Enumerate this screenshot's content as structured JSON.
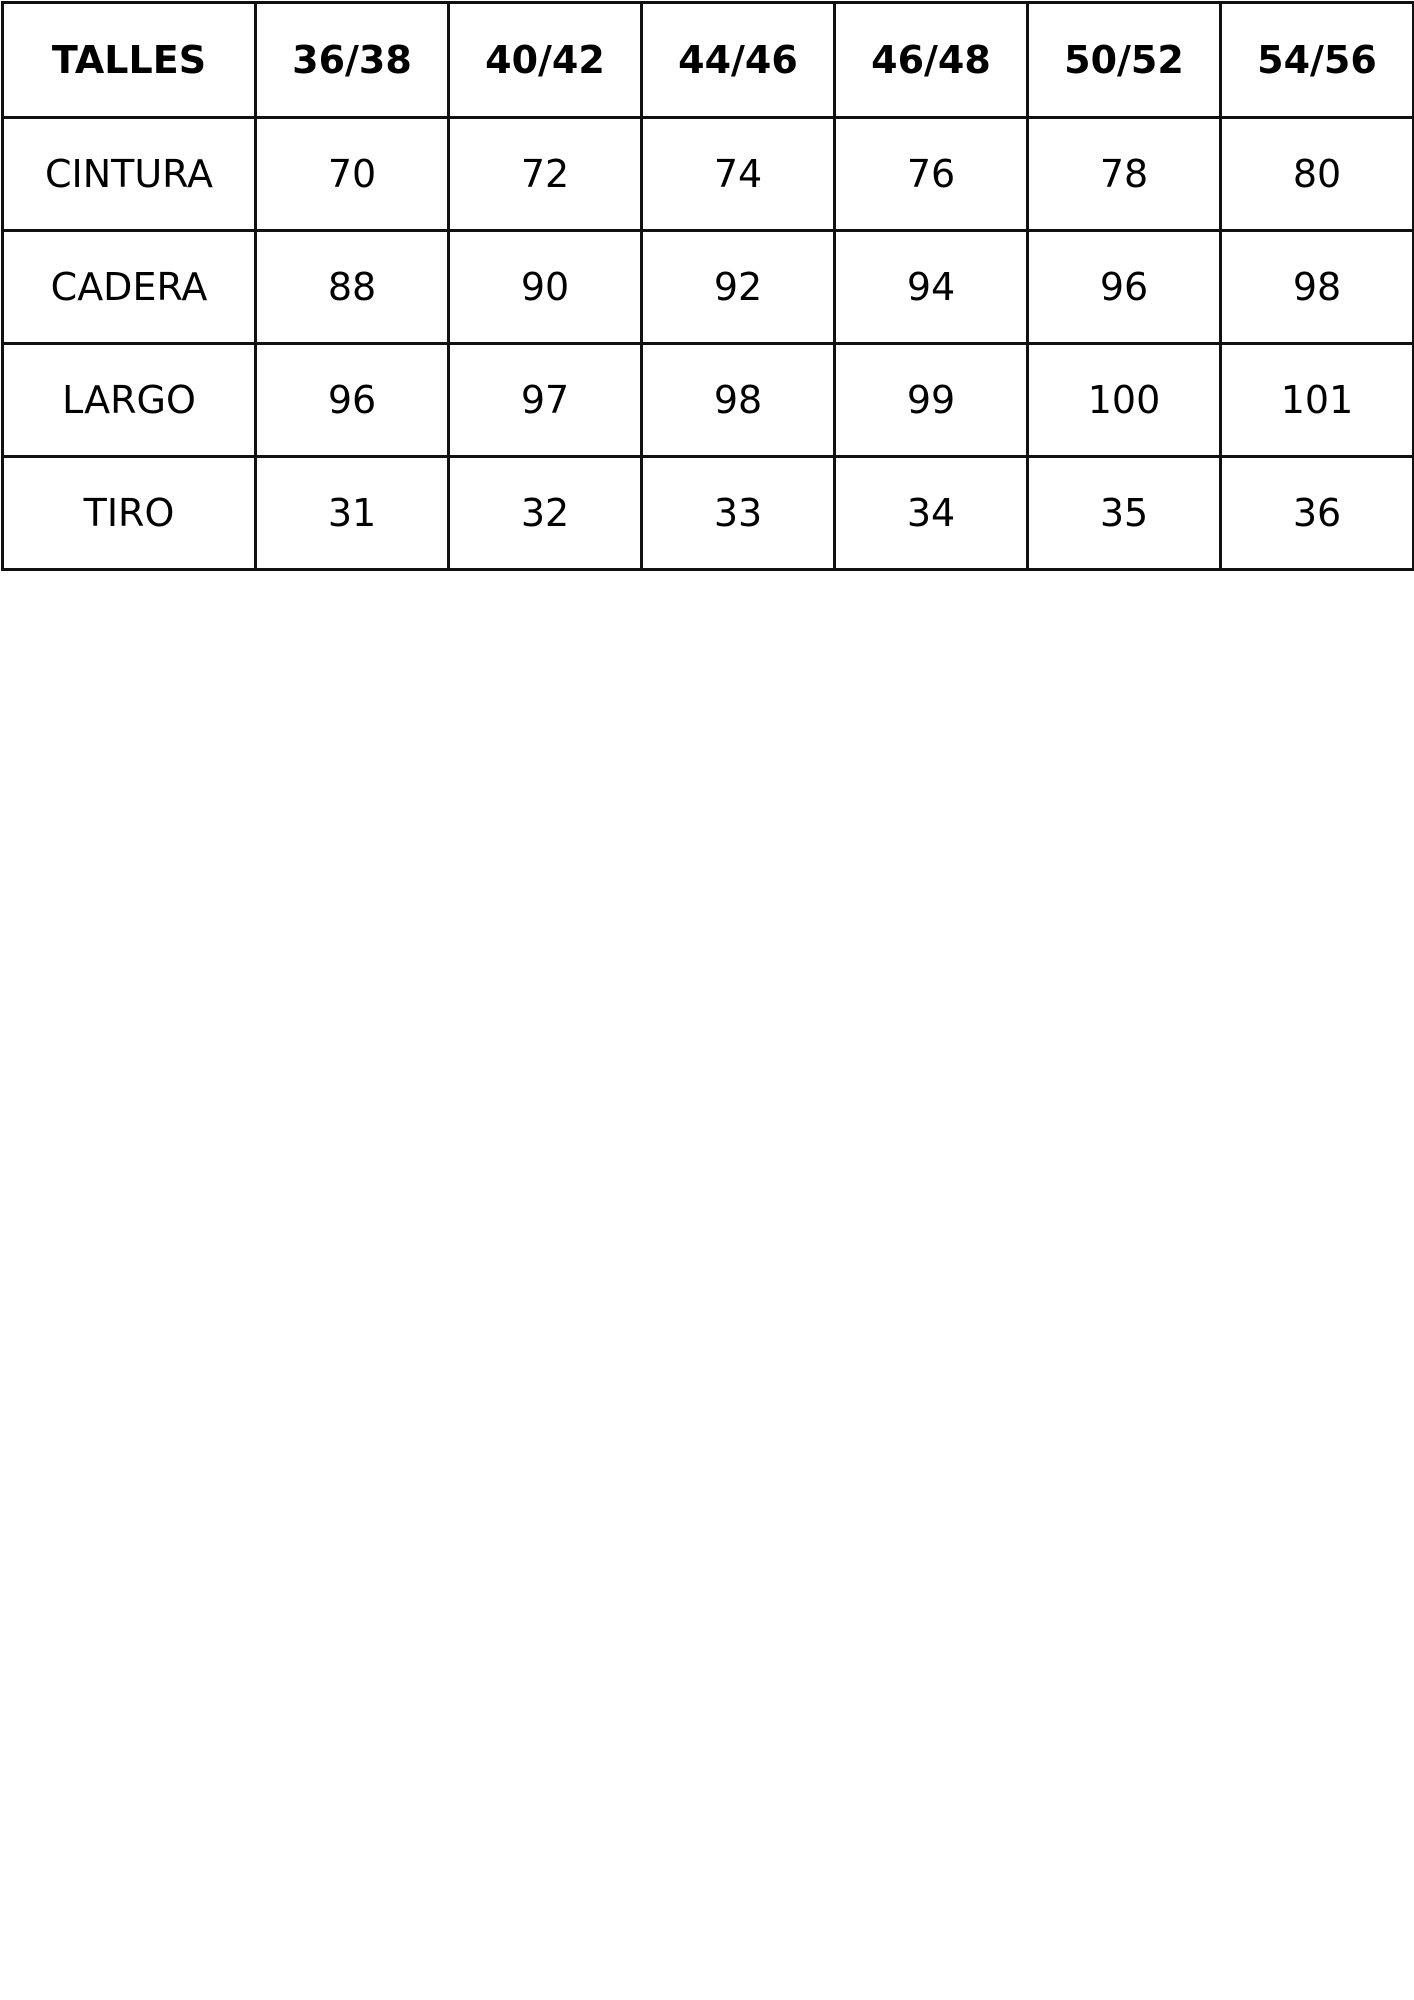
{
  "table": {
    "header": [
      "TALLES",
      "36/38",
      "40/42",
      "44/46",
      "46/48",
      "50/52",
      "54/56"
    ],
    "rows": [
      [
        "CINTURA",
        "70",
        "72",
        "74",
        "76",
        "78",
        "80"
      ],
      [
        "CADERA",
        "88",
        "90",
        "92",
        "94",
        "96",
        "98"
      ],
      [
        "LARGO",
        "96",
        "97",
        "98",
        "99",
        "100",
        "101"
      ],
      [
        "TIRO",
        "31",
        "32",
        "33",
        "34",
        "35",
        "36"
      ]
    ]
  }
}
